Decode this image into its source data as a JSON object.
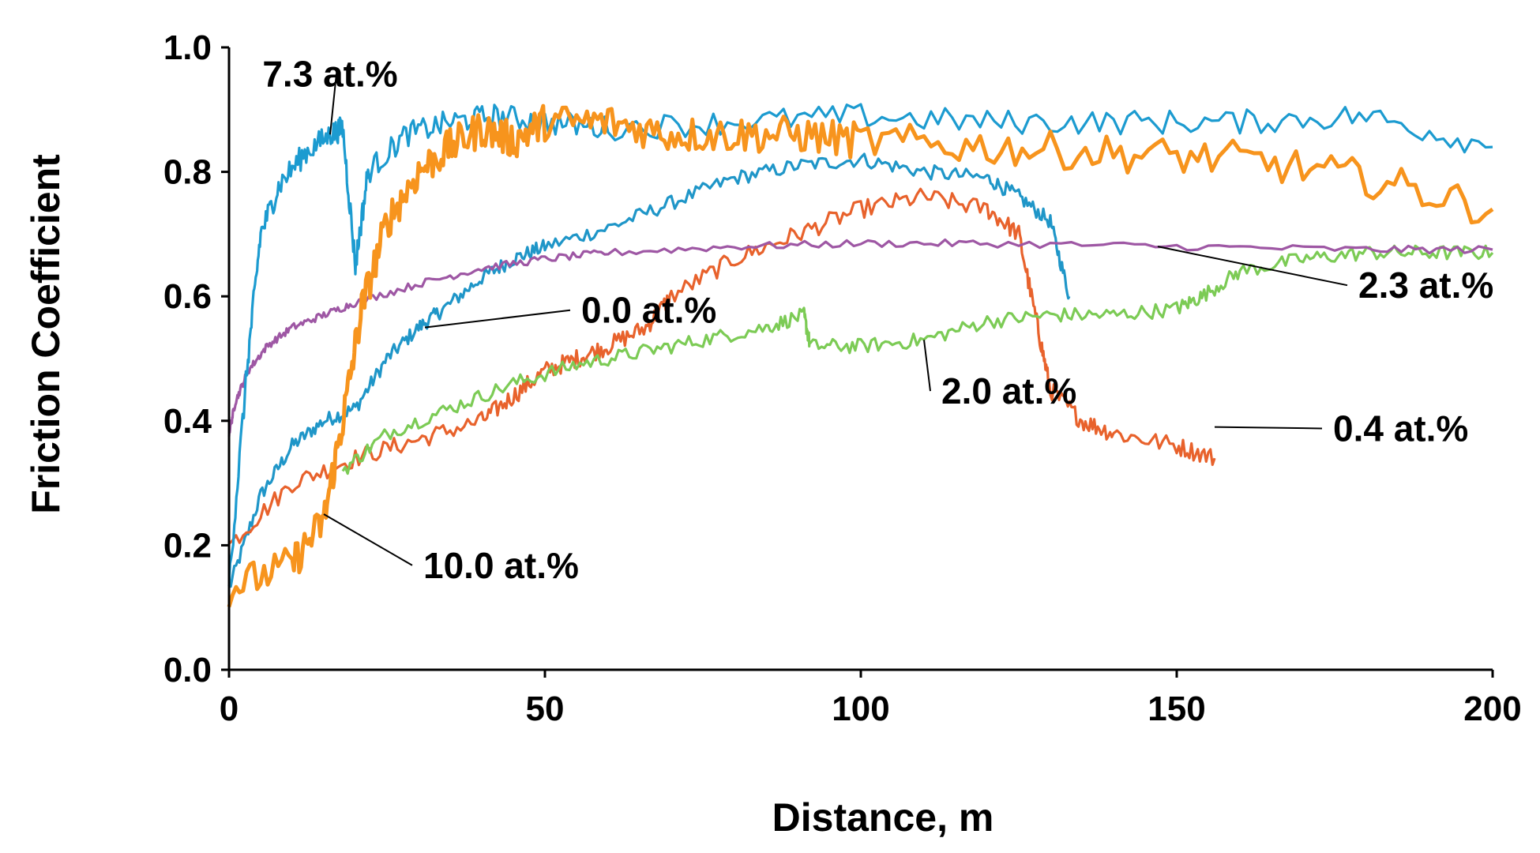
{
  "chart_data": {
    "type": "line",
    "title": "",
    "xlabel": "Distance, m",
    "ylabel": "Friction Coefficient",
    "xlim": [
      0,
      200
    ],
    "ylim": [
      0,
      1.0
    ],
    "grid": false,
    "x_ticks": [
      "0",
      "50",
      "100",
      "150",
      "200"
    ],
    "y_ticks": [
      "0.0",
      "0.2",
      "0.4",
      "0.6",
      "0.8",
      "1.0"
    ],
    "series": [
      {
        "name": "0.0 at.%",
        "color": "#1F96C8",
        "noise": 0.012,
        "points": [
          [
            0,
            0.13
          ],
          [
            5,
            0.28
          ],
          [
            10,
            0.36
          ],
          [
            15,
            0.4
          ],
          [
            20,
            0.42
          ],
          [
            25,
            0.5
          ],
          [
            30,
            0.55
          ],
          [
            34,
            0.58
          ],
          [
            40,
            0.63
          ],
          [
            45,
            0.66
          ],
          [
            50,
            0.68
          ],
          [
            60,
            0.71
          ],
          [
            70,
            0.75
          ],
          [
            80,
            0.79
          ],
          [
            90,
            0.81
          ],
          [
            100,
            0.82
          ],
          [
            110,
            0.8
          ],
          [
            120,
            0.79
          ],
          [
            125,
            0.76
          ],
          [
            130,
            0.72
          ],
          [
            133,
            0.6
          ]
        ]
      },
      {
        "name": "0.4 at.%",
        "color": "#E8622C",
        "noise": 0.015,
        "points": [
          [
            0,
            0.2
          ],
          [
            10,
            0.3
          ],
          [
            20,
            0.34
          ],
          [
            30,
            0.37
          ],
          [
            40,
            0.4
          ],
          [
            45,
            0.44
          ],
          [
            50,
            0.48
          ],
          [
            55,
            0.5
          ],
          [
            60,
            0.52
          ],
          [
            66,
            0.55
          ],
          [
            70,
            0.6
          ],
          [
            80,
            0.66
          ],
          [
            90,
            0.7
          ],
          [
            100,
            0.74
          ],
          [
            110,
            0.76
          ],
          [
            120,
            0.74
          ],
          [
            125,
            0.7
          ],
          [
            128,
            0.55
          ],
          [
            130,
            0.45
          ],
          [
            135,
            0.4
          ],
          [
            140,
            0.38
          ],
          [
            150,
            0.36
          ],
          [
            156,
            0.34
          ]
        ]
      },
      {
        "name": "2.0 at.%",
        "color": "#7CCB55",
        "noise": 0.012,
        "points": [
          [
            18,
            0.32
          ],
          [
            25,
            0.38
          ],
          [
            35,
            0.42
          ],
          [
            45,
            0.46
          ],
          [
            55,
            0.49
          ],
          [
            65,
            0.51
          ],
          [
            75,
            0.53
          ],
          [
            85,
            0.55
          ],
          [
            91,
            0.57
          ],
          [
            92,
            0.52
          ],
          [
            100,
            0.52
          ],
          [
            110,
            0.53
          ],
          [
            120,
            0.56
          ],
          [
            130,
            0.57
          ],
          [
            140,
            0.57
          ],
          [
            150,
            0.58
          ],
          [
            154,
            0.6
          ],
          [
            160,
            0.64
          ],
          [
            170,
            0.66
          ],
          [
            180,
            0.67
          ],
          [
            190,
            0.67
          ],
          [
            200,
            0.67
          ]
        ]
      },
      {
        "name": "2.3 at.%",
        "color": "#9E57A4",
        "noise": 0.006,
        "points": [
          [
            0,
            0.38
          ],
          [
            1,
            0.43
          ],
          [
            3,
            0.48
          ],
          [
            6,
            0.52
          ],
          [
            10,
            0.55
          ],
          [
            15,
            0.57
          ],
          [
            20,
            0.59
          ],
          [
            30,
            0.62
          ],
          [
            40,
            0.645
          ],
          [
            50,
            0.66
          ],
          [
            60,
            0.67
          ],
          [
            80,
            0.68
          ],
          [
            100,
            0.685
          ],
          [
            120,
            0.685
          ],
          [
            150,
            0.68
          ],
          [
            180,
            0.675
          ],
          [
            200,
            0.675
          ]
        ]
      },
      {
        "name": "7.3 at.%",
        "color": "#1C9BD0",
        "noise": 0.02,
        "points": [
          [
            0,
            0.14
          ],
          [
            3,
            0.5
          ],
          [
            5,
            0.7
          ],
          [
            8,
            0.78
          ],
          [
            12,
            0.83
          ],
          [
            16,
            0.86
          ],
          [
            18,
            0.87
          ],
          [
            20,
            0.65
          ],
          [
            22,
            0.8
          ],
          [
            28,
            0.86
          ],
          [
            35,
            0.88
          ],
          [
            42,
            0.89
          ],
          [
            50,
            0.88
          ],
          [
            60,
            0.87
          ],
          [
            80,
            0.88
          ],
          [
            100,
            0.89
          ],
          [
            120,
            0.88
          ],
          [
            140,
            0.88
          ],
          [
            160,
            0.88
          ],
          [
            180,
            0.89
          ],
          [
            200,
            0.84
          ]
        ]
      },
      {
        "name": "10.0 at.%",
        "color": "#F7941D",
        "noise": 0.03,
        "points": [
          [
            0,
            0.13
          ],
          [
            10,
            0.17
          ],
          [
            15,
            0.24
          ],
          [
            18,
            0.4
          ],
          [
            21,
            0.58
          ],
          [
            25,
            0.72
          ],
          [
            30,
            0.8
          ],
          [
            35,
            0.84
          ],
          [
            40,
            0.87
          ],
          [
            45,
            0.85
          ],
          [
            50,
            0.88
          ],
          [
            60,
            0.88
          ],
          [
            70,
            0.86
          ],
          [
            80,
            0.86
          ],
          [
            90,
            0.86
          ],
          [
            100,
            0.85
          ],
          [
            120,
            0.84
          ],
          [
            140,
            0.83
          ],
          [
            160,
            0.82
          ],
          [
            180,
            0.79
          ],
          [
            200,
            0.74
          ]
        ]
      }
    ],
    "annotations": [
      {
        "text": "7.3 at.%",
        "series": "7.3 at.%",
        "anchor": [
          16,
          0.86
        ],
        "label_at": [
          16,
          0.94
        ]
      },
      {
        "text": "0.0 at.%",
        "series": "0.0 at.%",
        "anchor": [
          31,
          0.55
        ],
        "label_at": [
          55,
          0.56
        ]
      },
      {
        "text": "2.3 at.%",
        "series": "2.3 at.%",
        "anchor": [
          147,
          0.68
        ],
        "label_at": [
          178,
          0.6
        ]
      },
      {
        "text": "2.0 at.%",
        "series": "2.0 at.%",
        "anchor": [
          110,
          0.53
        ],
        "label_at": [
          112,
          0.43
        ]
      },
      {
        "text": "0.4 at.%",
        "series": "0.4 at.%",
        "anchor": [
          156,
          0.39
        ],
        "label_at": [
          174,
          0.37
        ]
      },
      {
        "text": "10.0 at.%",
        "series": "10.0 at.%",
        "anchor": [
          15,
          0.25
        ],
        "label_at": [
          30,
          0.15
        ]
      }
    ]
  }
}
